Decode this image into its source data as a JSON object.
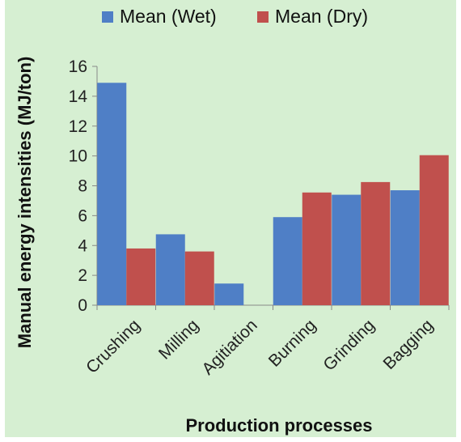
{
  "chart_data": {
    "type": "bar",
    "title": "",
    "xlabel": "Production processes",
    "ylabel": "Manual energy intensities (MJ/ton)",
    "categories": [
      "Crushing",
      "Milling",
      "Agitiation",
      "Burning",
      "Grinding",
      "Bagging"
    ],
    "series": [
      {
        "name": "Mean (Wet)",
        "color": "#4f7fc6",
        "values": [
          14.9,
          4.75,
          1.45,
          5.9,
          7.4,
          7.7
        ]
      },
      {
        "name": "Mean (Dry)",
        "color": "#c0504d",
        "values": [
          3.8,
          3.6,
          0,
          7.55,
          8.25,
          10.05
        ]
      }
    ],
    "ylim": [
      0,
      16
    ],
    "yticks": [
      0,
      2,
      4,
      6,
      8,
      10,
      12,
      14,
      16
    ],
    "grid": false,
    "legend_position": "top",
    "background_color": "#d6efd2"
  }
}
